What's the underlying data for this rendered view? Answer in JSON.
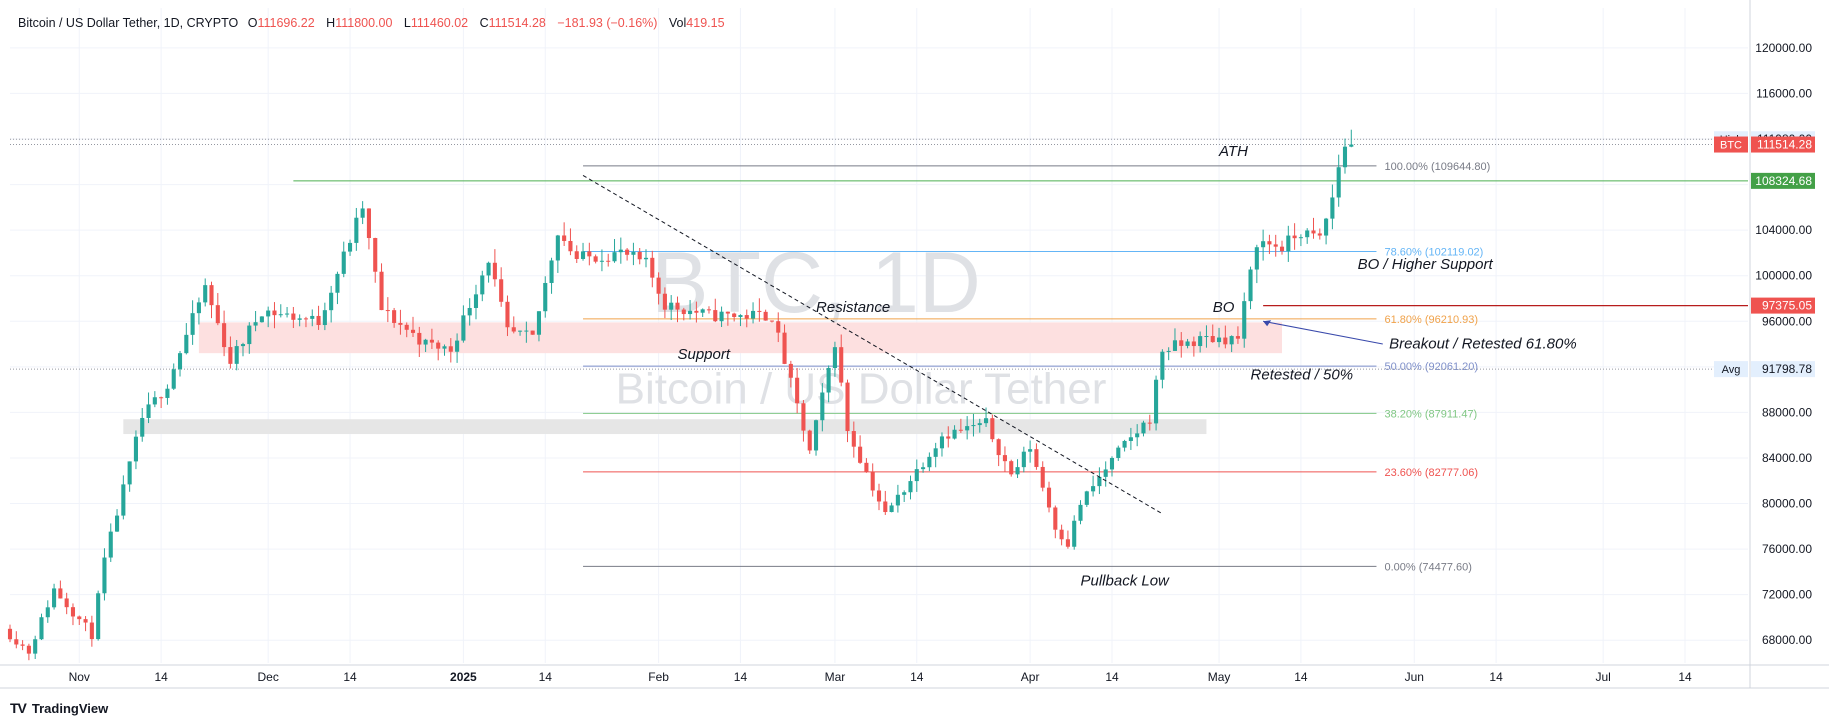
{
  "header": {
    "symbol": "Bitcoin / US Dollar Tether, 1D, CRYPTO",
    "open_label": "O",
    "open": "111696.22",
    "high_label": "H",
    "high": "111800.00",
    "low_label": "L",
    "low": "111460.02",
    "close_label": "C",
    "close": "111514.28",
    "change": "−181.93 (−0.16%)",
    "vol_label": "Vol",
    "vol": "419.15"
  },
  "brand": {
    "mark": "TV",
    "name": "TradingView"
  },
  "colors": {
    "up": "#26a69a",
    "down": "#ef5350",
    "grid": "#f0f3fa",
    "resistance_zone": "#fde0e0",
    "support_zone": "#e6e6e6",
    "fib_100": "#787b86",
    "fib_786": "#64b5f6",
    "fib_618": "#f0a24a",
    "fib_50": "#7e8fc9",
    "fib_382": "#81c784",
    "fib_236": "#ef5350",
    "fib_0": "#787b86",
    "green_line": "#4caf50",
    "red_line": "#b71c1c",
    "watermark": "#dfe1e5"
  },
  "chart_data": {
    "type": "candlestick",
    "title": "Bitcoin / US Dollar Tether, 1D",
    "watermark_symbol": "BTC, 1D",
    "watermark_name": "Bitcoin / US Dollar Tether",
    "ylim": [
      66000,
      123500
    ],
    "y_ticks": [
      68000,
      72000,
      76000,
      80000,
      84000,
      88000,
      92000,
      96000,
      100000,
      104000,
      108000,
      112000,
      116000,
      120000
    ],
    "y_tick_labels": [
      "68000.00",
      "72000.00",
      "76000.00",
      "80000.00",
      "84000.00",
      "88000.00",
      "92000.00",
      "96000.00",
      "100000.00",
      "104000.00",
      "108000.00",
      "112000.00",
      "116000.00",
      "120000.00"
    ],
    "x_range": [
      "2024-10-21",
      "2025-07-24"
    ],
    "x_ticks": [
      {
        "date": "2024-11-01",
        "label": "Nov",
        "bold": false
      },
      {
        "date": "2024-11-14",
        "label": "14",
        "bold": false
      },
      {
        "date": "2024-12-01",
        "label": "Dec",
        "bold": false
      },
      {
        "date": "2024-12-14",
        "label": "14",
        "bold": false
      },
      {
        "date": "2025-01-01",
        "label": "2025",
        "bold": true
      },
      {
        "date": "2025-01-14",
        "label": "14",
        "bold": false
      },
      {
        "date": "2025-02-01",
        "label": "Feb",
        "bold": false
      },
      {
        "date": "2025-02-14",
        "label": "14",
        "bold": false
      },
      {
        "date": "2025-03-01",
        "label": "Mar",
        "bold": false
      },
      {
        "date": "2025-03-14",
        "label": "14",
        "bold": false
      },
      {
        "date": "2025-04-01",
        "label": "Apr",
        "bold": false
      },
      {
        "date": "2025-04-14",
        "label": "14",
        "bold": false
      },
      {
        "date": "2025-05-01",
        "label": "May",
        "bold": false
      },
      {
        "date": "2025-05-14",
        "label": "14",
        "bold": false
      },
      {
        "date": "2025-06-01",
        "label": "Jun",
        "bold": false
      },
      {
        "date": "2025-06-14",
        "label": "14",
        "bold": false
      },
      {
        "date": "2025-07-01",
        "label": "Jul",
        "bold": false
      },
      {
        "date": "2025-07-14",
        "label": "14",
        "bold": false
      }
    ],
    "anchors": [
      [
        "2024-10-21",
        69000
      ],
      [
        "2024-10-25",
        67000
      ],
      [
        "2024-10-29",
        72500
      ],
      [
        "2024-11-04",
        68500
      ],
      [
        "2024-11-06",
        75000
      ],
      [
        "2024-11-12",
        87500
      ],
      [
        "2024-11-16",
        90500
      ],
      [
        "2024-11-22",
        99000
      ],
      [
        "2024-11-26",
        92500
      ],
      [
        "2024-12-01",
        97000
      ],
      [
        "2024-12-05",
        96500
      ],
      [
        "2024-12-10",
        96000
      ],
      [
        "2024-12-17",
        106000
      ],
      [
        "2024-12-20",
        97000
      ],
      [
        "2024-12-27",
        94000
      ],
      [
        "2024-12-31",
        93500
      ],
      [
        "2025-01-06",
        101500
      ],
      [
        "2025-01-09",
        95000
      ],
      [
        "2025-01-13",
        94500
      ],
      [
        "2025-01-17",
        104000
      ],
      [
        "2025-01-20",
        101500
      ],
      [
        "2025-01-27",
        102000
      ],
      [
        "2025-01-31",
        101000
      ],
      [
        "2025-02-03",
        97500
      ],
      [
        "2025-02-10",
        96500
      ],
      [
        "2025-02-20",
        96500
      ],
      [
        "2025-02-26",
        84500
      ],
      [
        "2025-03-02",
        94200
      ],
      [
        "2025-03-04",
        86500
      ],
      [
        "2025-03-10",
        79000
      ],
      [
        "2025-03-19",
        86000
      ],
      [
        "2025-03-26",
        87000
      ],
      [
        "2025-03-30",
        82500
      ],
      [
        "2025-04-02",
        85000
      ],
      [
        "2025-04-06",
        78000
      ],
      [
        "2025-04-08",
        76500
      ],
      [
        "2025-04-10",
        80000
      ],
      [
        "2025-04-16",
        84500
      ],
      [
        "2025-04-21",
        87500
      ],
      [
        "2025-04-23",
        93500
      ],
      [
        "2025-04-30",
        94500
      ],
      [
        "2025-05-05",
        94500
      ],
      [
        "2025-05-08",
        103000
      ],
      [
        "2025-05-12",
        102500
      ],
      [
        "2025-05-15",
        103800
      ],
      [
        "2025-05-18",
        103200
      ],
      [
        "2025-05-20",
        106800
      ],
      [
        "2025-05-21",
        109600
      ],
      [
        "2025-05-22",
        111514
      ]
    ],
    "fib_levels": [
      {
        "label": "100.00% (109644.80)",
        "value": 109644.8,
        "color_key": "fib_100"
      },
      {
        "label": "78.60% (102119.02)",
        "value": 102119.02,
        "color_key": "fib_786"
      },
      {
        "label": "61.80% (96210.93)",
        "value": 96210.93,
        "color_key": "fib_618"
      },
      {
        "label": "50.00% (92061.20)",
        "value": 92061.2,
        "color_key": "fib_50"
      },
      {
        "label": "38.20% (87911.47)",
        "value": 87911.47,
        "color_key": "fib_382"
      },
      {
        "label": "23.60% (82777.06)",
        "value": 82777.06,
        "color_key": "fib_236"
      },
      {
        "label": "0.00% (74477.60)",
        "value": 74477.6,
        "color_key": "fib_0"
      }
    ],
    "fib_start_date": "2025-01-20",
    "fib_end_date": "2025-05-26",
    "resistance_zone": {
      "from": 93200,
      "to": 95900,
      "start": "2024-11-20",
      "end": "2025-05-11"
    },
    "support_zone": {
      "from": 86100,
      "to": 87400,
      "start": "2024-11-08",
      "end": "2025-04-29"
    },
    "trendline": {
      "start": [
        "2025-01-20",
        108800
      ],
      "end": [
        "2025-04-22",
        79100
      ]
    },
    "green_line": {
      "value": 108324.68,
      "start": "2024-12-05"
    },
    "red_line": {
      "value": 97375.05,
      "start": "2025-05-08"
    },
    "dotted_lines": [
      111980,
      111514.28,
      91798.78
    ],
    "annotations": [
      {
        "text": "ATH",
        "date": "2025-05-01",
        "value": 110500
      },
      {
        "text": "Resistance",
        "date": "2025-02-26",
        "value": 96800
      },
      {
        "text": "Support",
        "date": "2025-02-04",
        "value": 92700
      },
      {
        "text": "BO",
        "date": "2025-04-30",
        "value": 96800
      },
      {
        "text": "BO / Higher Support",
        "date": "2025-05-23",
        "value": 100600
      },
      {
        "text": "Breakout / Retested 61.80%",
        "date": "2025-05-28",
        "value": 93600
      },
      {
        "text": "Retested / 50%",
        "date": "2025-05-06",
        "value": 90900
      },
      {
        "text": "Pullback Low",
        "date": "2025-04-09",
        "value": 72800
      }
    ],
    "price_labels": [
      {
        "prefix": "High",
        "value": "111980.00",
        "y": 111980,
        "style": "light"
      },
      {
        "prefix": "BTC",
        "value": "111514.28",
        "y": 111514.28,
        "style": "red"
      },
      {
        "prefix": "",
        "value": "108324.68",
        "y": 108324.68,
        "style": "green"
      },
      {
        "prefix": "",
        "value": "97375.05",
        "y": 97375.05,
        "style": "red"
      },
      {
        "prefix": "Avg",
        "value": "91798.78",
        "y": 91798.78,
        "style": "light"
      }
    ]
  }
}
